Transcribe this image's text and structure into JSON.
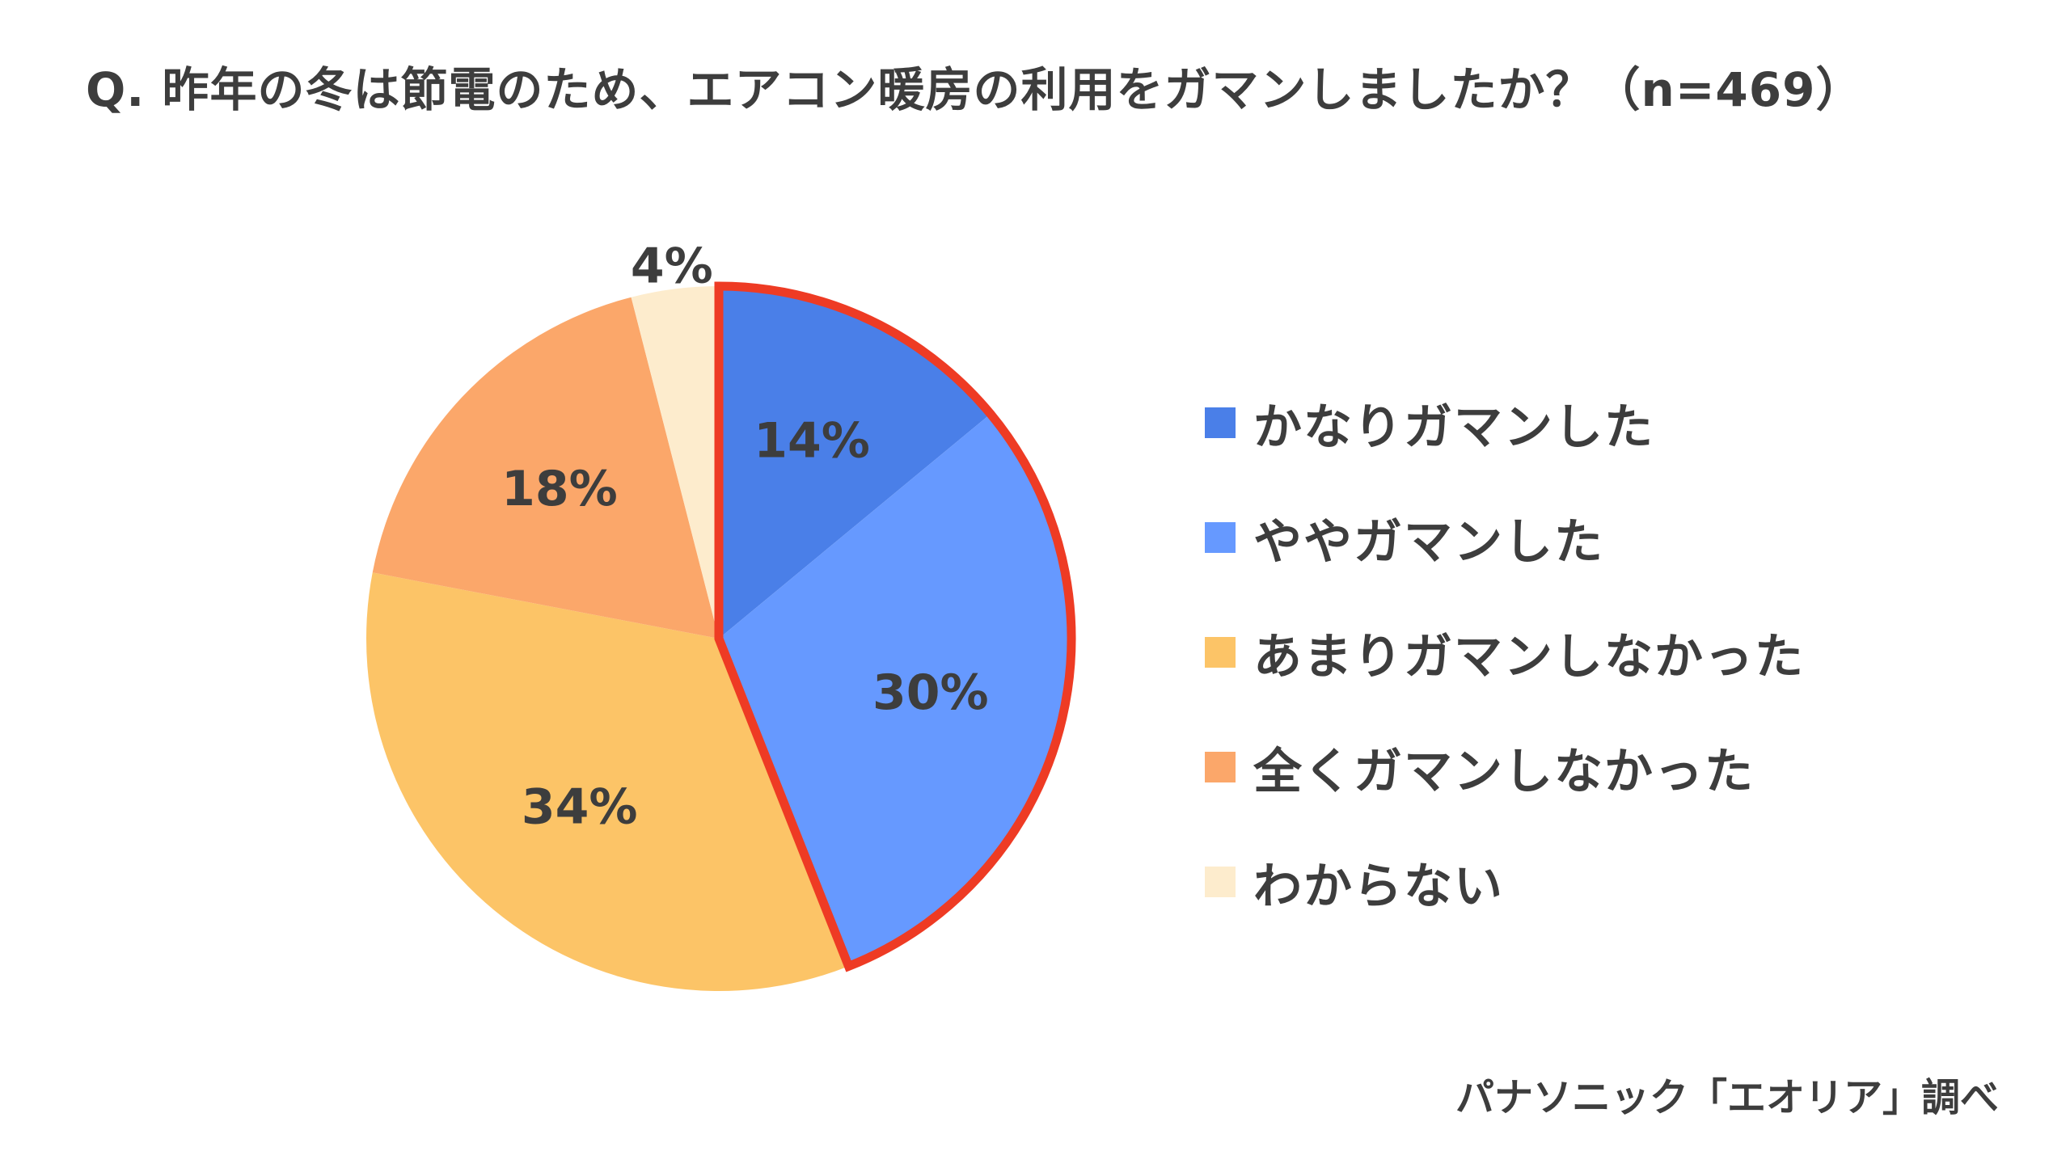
{
  "title": "Q. 昨年の冬は節電のため、エアコン暖房の利用をガマンしましたか？（n=469）",
  "source": "パナソニック「エオリア」調べ",
  "chart_data": {
    "type": "pie",
    "title": "Q. 昨年の冬は節電のため、エアコン暖房の利用をガマンしましたか？（n=469）",
    "n": 469,
    "legend_position": "right",
    "highlight": {
      "slices": [
        "かなりガマンした",
        "ややガマンした"
      ],
      "outline_color": "#ee3b24"
    },
    "slices": [
      {
        "label": "かなりガマンした",
        "value": 14,
        "display": "14%",
        "color": "#4a7fe8"
      },
      {
        "label": "ややガマンした",
        "value": 30,
        "display": "30%",
        "color": "#6699ff"
      },
      {
        "label": "あまりガマンしなかった",
        "value": 34,
        "display": "34%",
        "color": "#fcc467"
      },
      {
        "label": "全くガマンしなかった",
        "value": 18,
        "display": "18%",
        "color": "#fba76a"
      },
      {
        "label": "わからない",
        "value": 4,
        "display": "4%",
        "color": "#fdeccd"
      }
    ]
  }
}
